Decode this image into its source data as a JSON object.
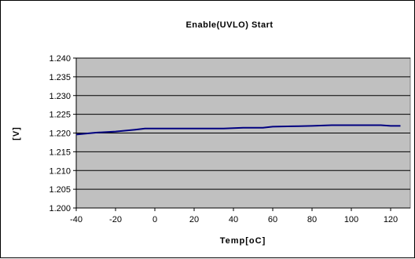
{
  "chart_data": {
    "type": "line",
    "title": "Enable(UVLO) Start",
    "xlabel": "Temp[oC]",
    "ylabel": "[V]",
    "xlim": [
      -40,
      130
    ],
    "ylim": [
      1.2,
      1.24
    ],
    "xticks": [
      -40,
      -20,
      0,
      20,
      40,
      60,
      80,
      100,
      120
    ],
    "xtick_labels": [
      "-40",
      "-20",
      "0",
      "20",
      "40",
      "60",
      "80",
      "100",
      "120"
    ],
    "yticks": [
      1.2,
      1.205,
      1.21,
      1.215,
      1.22,
      1.225,
      1.23,
      1.235,
      1.24
    ],
    "ytick_labels": [
      "1.200",
      "1.205",
      "1.210",
      "1.215",
      "1.220",
      "1.225",
      "1.230",
      "1.235",
      "1.240"
    ],
    "grid": "horizontal major gridlines",
    "legend": "none",
    "colors": {
      "plot_background": "#c0c0c0",
      "chart_background": "#ffffff",
      "series_line": "#000080",
      "gridline": "#000000"
    },
    "series": [
      {
        "x": [
          -40,
          -30,
          -20,
          -10,
          -5,
          0,
          10,
          20,
          30,
          35,
          45,
          55,
          60,
          70,
          80,
          90,
          100,
          110,
          115,
          120,
          125
        ],
        "values": [
          1.2196,
          1.2201,
          1.2204,
          1.2209,
          1.2212,
          1.2212,
          1.2212,
          1.2212,
          1.2212,
          1.2212,
          1.2214,
          1.2214,
          1.2217,
          1.2218,
          1.2219,
          1.2221,
          1.2221,
          1.2221,
          1.2221,
          1.2219,
          1.2219
        ]
      }
    ]
  }
}
